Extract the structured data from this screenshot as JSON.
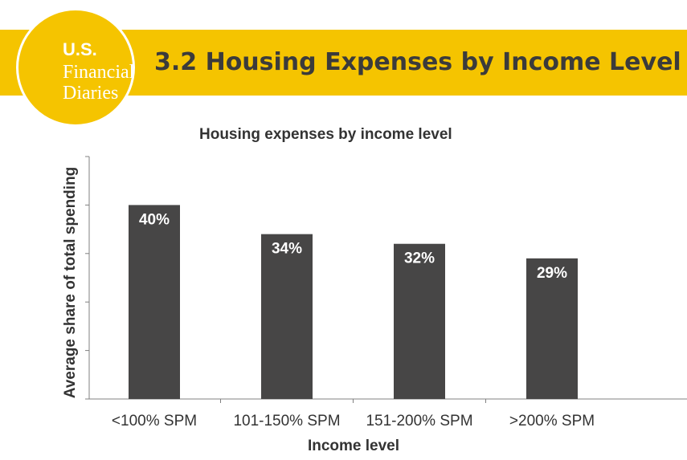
{
  "header": {
    "title": "3.2 Housing Expenses by Income Level",
    "logo": {
      "line1": "U.S.",
      "line2": "Financial",
      "line3": "Diaries"
    }
  },
  "colors": {
    "banner": "#f5c400",
    "bar": "#474646",
    "text": "#333333",
    "axis": "#808080"
  },
  "chart_data": {
    "type": "bar",
    "title": "Housing expenses by income level",
    "xlabel": "Income level",
    "ylabel": "Average share of total spending",
    "categories": [
      "<100% SPM",
      "101-150% SPM",
      "151-200% SPM",
      ">200% SPM"
    ],
    "values": [
      40,
      34,
      32,
      29
    ],
    "data_labels": [
      "40%",
      "34%",
      "32%",
      "29%"
    ],
    "ylim": [
      0,
      50
    ],
    "y_ticks": [
      0,
      10,
      20,
      30,
      40,
      50
    ],
    "grid": false,
    "legend": "none"
  }
}
